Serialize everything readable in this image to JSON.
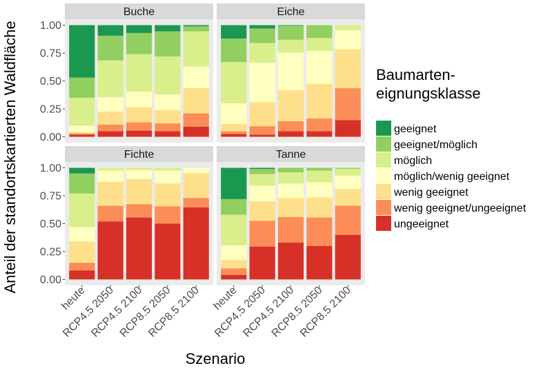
{
  "chart_data": {
    "type": "bar",
    "stacked": true,
    "faceted": true,
    "xlabel": "Szenario",
    "ylabel": "Anteil der standortskartierten Waldfläche",
    "ylim": [
      0,
      1
    ],
    "yticks": [
      "0.00",
      "0.25",
      "0.50",
      "0.75",
      "1.00"
    ],
    "ytick_values": [
      0,
      0.25,
      0.5,
      0.75,
      1.0
    ],
    "grid": false,
    "categories": [
      "heute",
      "RCP4.5 2050",
      "RCP4.5 2100",
      "RCP8.5 2050",
      "RCP8.5 2100"
    ],
    "legend": {
      "title_line1": "Baumarten-",
      "title_line2": "eignungsklasse",
      "placement": "right",
      "entries": [
        {
          "label": "geeignet",
          "color": "#1a9850"
        },
        {
          "label": "geeignet/möglich",
          "color": "#91cf60"
        },
        {
          "label": "möglich",
          "color": "#d9ef8b"
        },
        {
          "label": "möglich/wenig geeignet",
          "color": "#ffffbf"
        },
        {
          "label": "wenig geeignet",
          "color": "#fee08b"
        },
        {
          "label": "wenig geeignet/ungeeignet",
          "color": "#fc8d59"
        },
        {
          "label": "ungeeignet",
          "color": "#d73027"
        }
      ]
    },
    "stack_order_bottom_up": [
      "ungeeignet",
      "wenig geeignet/ungeeignet",
      "wenig geeignet",
      "möglich/wenig geeignet",
      "möglich",
      "geeignet/möglich",
      "geeignet"
    ],
    "panels": [
      {
        "title": "Buche",
        "series_values_bottom_up": [
          [
            0.02,
            0.01,
            0.01,
            0.06,
            0.25,
            0.18,
            0.47
          ],
          [
            0.05,
            0.06,
            0.115,
            0.13,
            0.33,
            0.22,
            0.095
          ],
          [
            0.055,
            0.075,
            0.135,
            0.14,
            0.335,
            0.19,
            0.07
          ],
          [
            0.05,
            0.07,
            0.12,
            0.14,
            0.34,
            0.225,
            0.055
          ],
          [
            0.09,
            0.12,
            0.225,
            0.195,
            0.315,
            0.045,
            0.01
          ]
        ]
      },
      {
        "title": "Eiche",
        "series_values_bottom_up": [
          [
            0.025,
            0.025,
            0.065,
            0.185,
            0.37,
            0.21,
            0.12
          ],
          [
            0.02,
            0.075,
            0.215,
            0.355,
            0.175,
            0.13,
            0.03
          ],
          [
            0.05,
            0.09,
            0.28,
            0.335,
            0.115,
            0.125,
            0.005
          ],
          [
            0.05,
            0.115,
            0.31,
            0.295,
            0.115,
            0.115,
            0
          ],
          [
            0.15,
            0.285,
            0.35,
            0.17,
            0.045,
            0,
            0
          ]
        ]
      },
      {
        "title": "Fichte",
        "series_values_bottom_up": [
          [
            0.08,
            0.07,
            0.19,
            0.13,
            0.3,
            0.18,
            0.05
          ],
          [
            0.52,
            0.14,
            0.215,
            0.1,
            0.025,
            0,
            0
          ],
          [
            0.555,
            0.12,
            0.225,
            0.08,
            0.02,
            0,
            0
          ],
          [
            0.5,
            0.155,
            0.205,
            0.115,
            0.025,
            0,
            0
          ],
          [
            0.645,
            0.085,
            0.22,
            0.05,
            0,
            0,
            0
          ]
        ]
      },
      {
        "title": "Tanne",
        "series_values_bottom_up": [
          [
            0.04,
            0.06,
            0.075,
            0.13,
            0.275,
            0.14,
            0.28
          ],
          [
            0.295,
            0.23,
            0.175,
            0.14,
            0.105,
            0.045,
            0.01
          ],
          [
            0.33,
            0.23,
            0.17,
            0.13,
            0.1,
            0.04,
            0
          ],
          [
            0.3,
            0.255,
            0.18,
            0.135,
            0.105,
            0.025,
            0
          ],
          [
            0.4,
            0.26,
            0.15,
            0.12,
            0.06,
            0.01,
            0
          ]
        ]
      }
    ]
  }
}
